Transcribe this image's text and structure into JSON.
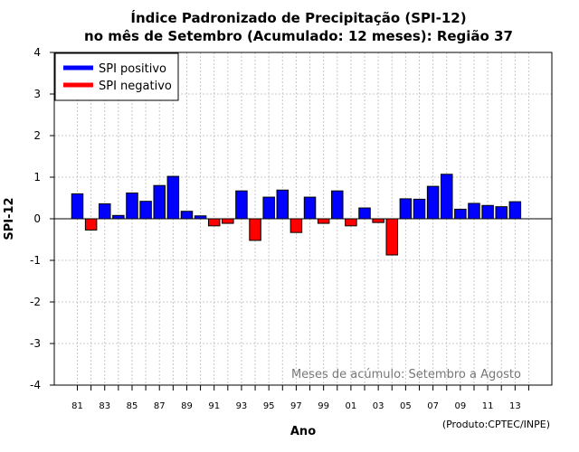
{
  "chart_data": {
    "type": "bar",
    "title": [
      "Índice Padronizado de Precipitação (SPI-12)",
      "no mês de Setembro (Acumulado: 12 meses): Região 37"
    ],
    "xlabel": "Ano",
    "ylabel": "SPI-12",
    "ylim": [
      -4,
      4
    ],
    "yticks": [
      4,
      3,
      2,
      1,
      0,
      -1,
      -2,
      -3,
      -4
    ],
    "grid": true,
    "legend_position": "top-left",
    "categories": [
      "1981",
      "1982",
      "1983",
      "1984",
      "1985",
      "1986",
      "1987",
      "1988",
      "1989",
      "1990",
      "1991",
      "1992",
      "1993",
      "1994",
      "1995",
      "1996",
      "1997",
      "1998",
      "1999",
      "2000",
      "2001",
      "2002",
      "2003",
      "2004",
      "2005",
      "2006",
      "2007",
      "2008",
      "2009",
      "2010",
      "2011",
      "2012",
      "2013"
    ],
    "x_tick_labels": [
      "81",
      "83",
      "85",
      "87",
      "89",
      "91",
      "93",
      "95",
      "97",
      "99",
      "01",
      "03",
      "05",
      "07",
      "09",
      "11",
      "13"
    ],
    "values": [
      0.6,
      -0.27,
      0.36,
      0.08,
      0.62,
      0.42,
      0.8,
      1.02,
      0.18,
      0.07,
      -0.17,
      -0.11,
      0.67,
      -0.52,
      0.52,
      0.69,
      -0.33,
      0.52,
      -0.11,
      0.67,
      -0.17,
      0.26,
      -0.09,
      -0.87,
      0.48,
      0.47,
      0.78,
      1.07,
      0.23,
      0.37,
      0.32,
      0.29,
      0.41
    ],
    "legend": [
      {
        "name": "SPI positivo",
        "color": "#0000ff"
      },
      {
        "name": "SPI negativo",
        "color": "#ff0000"
      }
    ],
    "annotation": "Meses de acúmulo: Setembro a Agosto",
    "credit": "(Produto:CPTEC/INPE)"
  },
  "colors": {
    "positive": "#0000ff",
    "negative": "#ff0000",
    "grid": "#c8c8c8",
    "axis": "#000000",
    "annotation": "#777777"
  }
}
